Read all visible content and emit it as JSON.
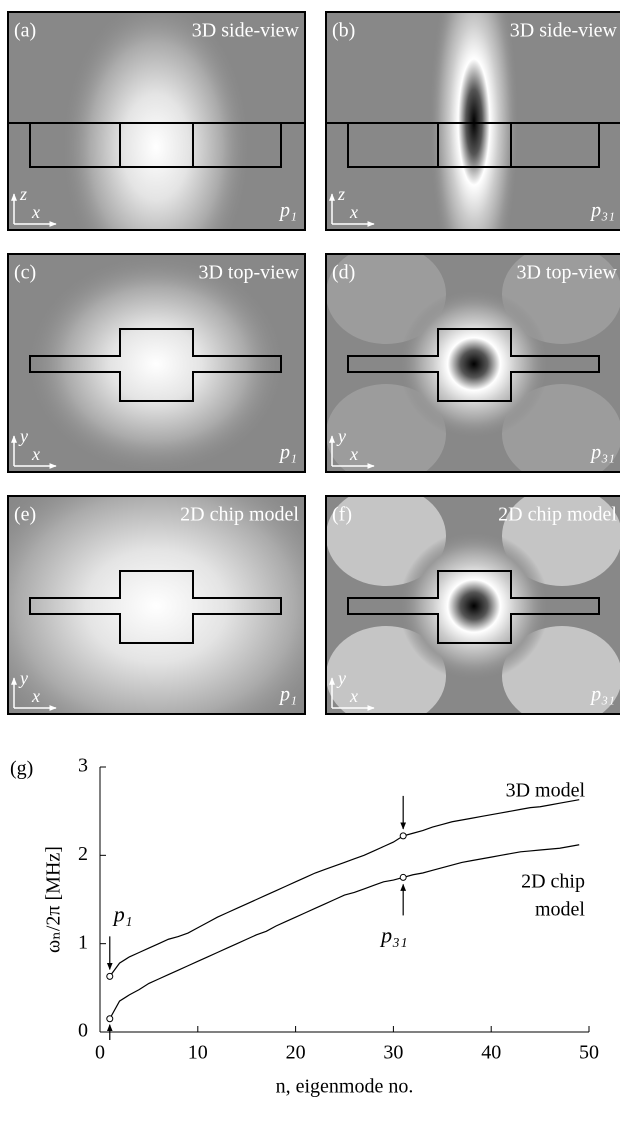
{
  "panels": [
    {
      "label": "(a)",
      "title": "3D side-view",
      "mode": "p₁",
      "axes": [
        "z",
        "x"
      ],
      "view": "side",
      "pattern": "p1"
    },
    {
      "label": "(b)",
      "title": "3D side-view",
      "mode": "p₃₁",
      "axes": [
        "z",
        "x"
      ],
      "view": "side",
      "pattern": "p31"
    },
    {
      "label": "(c)",
      "title": "3D top-view",
      "mode": "p₁",
      "axes": [
        "y",
        "x"
      ],
      "view": "top",
      "pattern": "p1"
    },
    {
      "label": "(d)",
      "title": "3D top-view",
      "mode": "p₃₁",
      "axes": [
        "y",
        "x"
      ],
      "view": "top",
      "pattern": "p31"
    },
    {
      "label": "(e)",
      "title": "2D chip model",
      "mode": "p₁",
      "axes": [
        "y",
        "x"
      ],
      "view": "top",
      "pattern": "p1"
    },
    {
      "label": "(f)",
      "title": "2D chip model",
      "mode": "p₃₁",
      "axes": [
        "y",
        "x"
      ],
      "view": "top",
      "pattern": "p31"
    }
  ],
  "chart_data": {
    "type": "line",
    "panel_label": "(g)",
    "x_label": "n, eigenmode no.",
    "y_label": "ωₙ/2π [MHz]",
    "x": [
      1,
      2,
      3,
      4,
      5,
      6,
      7,
      8,
      9,
      10,
      11,
      12,
      13,
      14,
      15,
      16,
      17,
      18,
      19,
      20,
      21,
      22,
      23,
      24,
      25,
      26,
      27,
      28,
      29,
      30,
      31,
      32,
      33,
      34,
      35,
      36,
      37,
      38,
      39,
      40,
      41,
      42,
      43,
      44,
      45,
      46,
      47,
      48,
      49
    ],
    "series": [
      {
        "name": "3D model",
        "color": "#000000",
        "values": [
          0.63,
          0.78,
          0.85,
          0.9,
          0.95,
          1.0,
          1.05,
          1.08,
          1.12,
          1.18,
          1.24,
          1.3,
          1.35,
          1.4,
          1.45,
          1.5,
          1.55,
          1.6,
          1.65,
          1.7,
          1.75,
          1.8,
          1.84,
          1.88,
          1.92,
          1.96,
          2.0,
          2.05,
          2.1,
          2.15,
          2.22,
          2.25,
          2.28,
          2.32,
          2.35,
          2.38,
          2.4,
          2.42,
          2.44,
          2.46,
          2.48,
          2.5,
          2.52,
          2.54,
          2.55,
          2.57,
          2.59,
          2.61,
          2.63
        ]
      },
      {
        "name": "2D chip model",
        "color": "#000000",
        "values": [
          0.15,
          0.35,
          0.42,
          0.48,
          0.55,
          0.6,
          0.65,
          0.7,
          0.75,
          0.8,
          0.85,
          0.9,
          0.95,
          1.0,
          1.05,
          1.1,
          1.14,
          1.2,
          1.25,
          1.3,
          1.35,
          1.4,
          1.45,
          1.5,
          1.55,
          1.58,
          1.62,
          1.66,
          1.7,
          1.72,
          1.75,
          1.78,
          1.8,
          1.83,
          1.86,
          1.89,
          1.92,
          1.94,
          1.96,
          1.98,
          2.0,
          2.02,
          2.04,
          2.05,
          2.06,
          2.07,
          2.08,
          2.1,
          2.12
        ]
      }
    ],
    "annotations": {
      "series_0": [
        "3D model"
      ],
      "series_1": [
        "2D chip",
        "model"
      ],
      "marker_1": "p₁",
      "marker_31": "p₃₁"
    },
    "xlim": [
      0,
      50
    ],
    "ylim": [
      0,
      3
    ],
    "xticks": [
      0,
      10,
      20,
      30,
      40,
      50
    ],
    "yticks": [
      0,
      1,
      2,
      3
    ]
  }
}
